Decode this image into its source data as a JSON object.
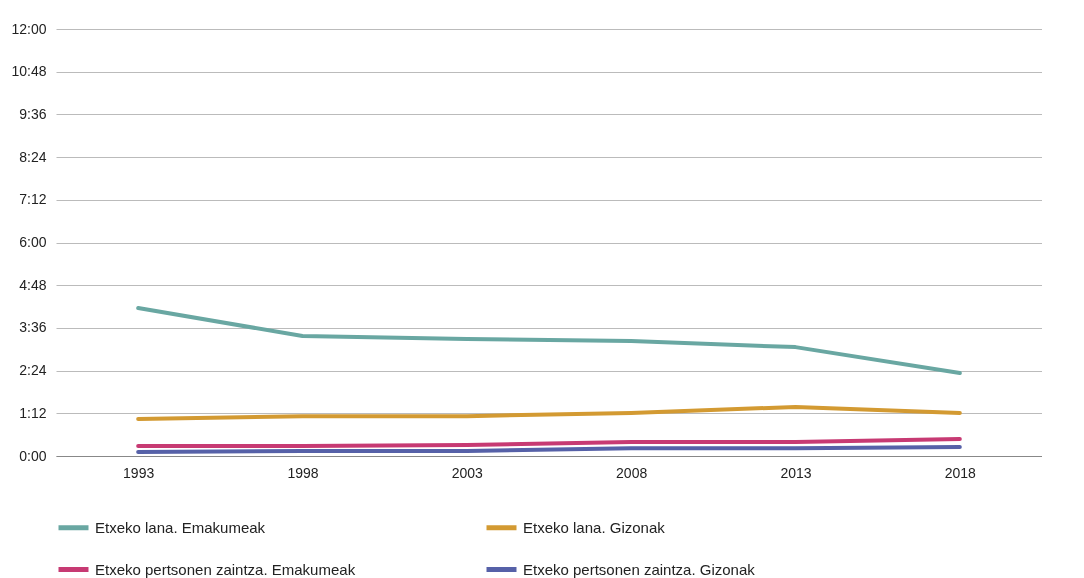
{
  "chart_data": {
    "type": "line",
    "categories": [
      "1993",
      "1998",
      "2003",
      "2008",
      "2013",
      "2018"
    ],
    "ylim": [
      0,
      12
    ],
    "yticks": [
      {
        "value": 0,
        "label": "0:00"
      },
      {
        "value": 1.2,
        "label": "1:12"
      },
      {
        "value": 2.4,
        "label": "2:24"
      },
      {
        "value": 3.6,
        "label": "3:36"
      },
      {
        "value": 4.8,
        "label": "4:48"
      },
      {
        "value": 6,
        "label": "6:00"
      },
      {
        "value": 7.2,
        "label": "7:12"
      },
      {
        "value": 8.4,
        "label": "8:24"
      },
      {
        "value": 9.6,
        "label": "9:36"
      },
      {
        "value": 10.8,
        "label": "10:48"
      },
      {
        "value": 12,
        "label": "12:00"
      }
    ],
    "grid": "y",
    "legend": "bottom",
    "marker": "none",
    "line_style": "solid",
    "series": [
      {
        "name": "Etxeko lana. Emakumeak",
        "color": "#69a7a2",
        "values": [
          4.16,
          3.37,
          3.29,
          3.23,
          3.06,
          2.33
        ]
      },
      {
        "name": "Etxeko lana. Gizonak",
        "color": "#d39a32",
        "values": [
          1.04,
          1.12,
          1.12,
          1.21,
          1.38,
          1.21
        ]
      },
      {
        "name": "Etxeko pertsonen zaintza. Emakumeak",
        "color": "#c73a73",
        "values": [
          0.28,
          0.28,
          0.31,
          0.39,
          0.39,
          0.48
        ]
      },
      {
        "name": "Etxeko pertsonen zaintza. Gizonak",
        "color": "#5661a8",
        "values": [
          0.11,
          0.14,
          0.14,
          0.22,
          0.22,
          0.25
        ]
      }
    ]
  }
}
